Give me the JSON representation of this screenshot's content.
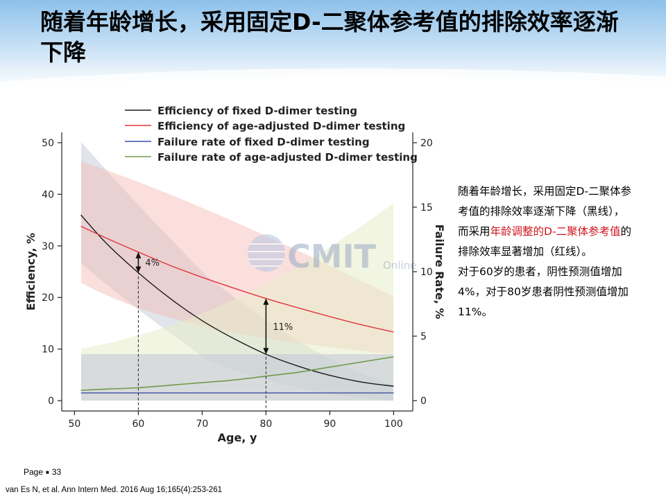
{
  "slide": {
    "title": "随着年龄增长，采用固定D-二聚体参考值的排除效率逐渐下降",
    "watermark": {
      "main": "CMIT",
      "sub": "Online"
    },
    "page_label": "Page",
    "page_number": "33",
    "reference": "van Es N, et al. Ann Intern Med. 2016 Aug 16;165(4):253-261"
  },
  "side_text": {
    "p1_part1": "随着年龄增长，采用固定D-二聚体参考值的排除效率逐渐下降（黑线），而采用",
    "p1_red": "年龄调整的D-二聚体参考值",
    "p1_part2": "的排除效率显著增加（红线）。",
    "p2": "对于60岁的患者，阴性预测值增加4%，对于80岁患者阴性预测值增加11%。"
  },
  "colors": {
    "fixed_efficiency": "#1a1a1a",
    "age_efficiency": "#e0353c",
    "fixed_failure": "#3d4fa3",
    "age_failure": "#6f9a4a",
    "highlight_red": "#d0141b"
  },
  "chart_data": {
    "type": "line",
    "x": [
      51,
      55,
      60,
      65,
      70,
      75,
      80,
      85,
      90,
      95,
      100
    ],
    "xlabel": "Age, y",
    "ylabel_left": "Efficiency, %",
    "ylabel_right": "Failure Rate, %",
    "xlim": [
      48,
      103
    ],
    "ylim_left": [
      -2,
      52
    ],
    "ylim_right": [
      -0.8,
      20.8
    ],
    "xticks": [
      50,
      60,
      70,
      80,
      90,
      100
    ],
    "yticks_left": [
      0,
      10,
      20,
      30,
      40,
      50
    ],
    "yticks_right": [
      0,
      5,
      10,
      15,
      20
    ],
    "grid": false,
    "legend_position": "top",
    "series": [
      {
        "name": "Efficiency of fixed D-dimer testing",
        "axis": "left",
        "values": [
          36,
          30.5,
          24.8,
          19.8,
          15.5,
          12,
          9,
          6.7,
          4.9,
          3.6,
          2.8
        ]
      },
      {
        "name": "Efficiency of age-adjusted D-dimer testing",
        "axis": "left",
        "values": [
          33.8,
          31.5,
          28.8,
          26.2,
          23.9,
          21.8,
          19.8,
          18,
          16.3,
          14.7,
          13.3
        ]
      },
      {
        "name": "Failure rate of fixed D-dimer testing",
        "axis": "right",
        "values": [
          0.6,
          0.6,
          0.6,
          0.6,
          0.6,
          0.6,
          0.6,
          0.6,
          0.6,
          0.6,
          0.6
        ]
      },
      {
        "name": "Failure rate of age-adjusted D-dimer testing",
        "axis": "right",
        "values": [
          0.8,
          0.9,
          1.0,
          1.2,
          1.4,
          1.6,
          1.9,
          2.2,
          2.6,
          3.0,
          3.4
        ]
      }
    ],
    "annotations": [
      {
        "x": 60,
        "from": 24.8,
        "to": 28.8,
        "text": "4%"
      },
      {
        "x": 80,
        "from": 9,
        "to": 19.8,
        "text": "11%"
      }
    ]
  }
}
